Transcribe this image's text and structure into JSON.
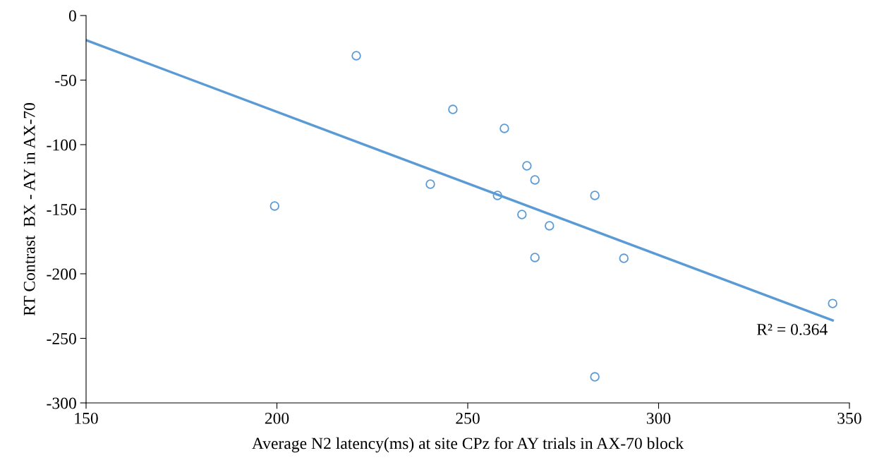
{
  "chart_data": {
    "type": "scatter",
    "xlabel": "Average N2 latency(ms) at site CPz for AY trials in AX-70 block",
    "ylabel": "RT Contrast  BX - AY in AX-70",
    "xlim": [
      150,
      350
    ],
    "xticks": [
      150,
      200,
      250,
      300,
      350
    ],
    "ylim": [
      -300,
      0
    ],
    "yticks": [
      -300,
      -250,
      -200,
      -150,
      -100,
      -50,
      0
    ],
    "grid": false,
    "legend": false,
    "series": [
      {
        "marker": "circle",
        "color": "#5b9bd5",
        "x": [
          199.4,
          220.8,
          240.2,
          246.1,
          257.8,
          259.6,
          264.2,
          265.5,
          267.6,
          267.6,
          271.4,
          283.3,
          283.3,
          290.9,
          345.6
        ],
        "values": [
          -147.5,
          -31.1,
          -130.6,
          -72.7,
          -139.3,
          -87.4,
          -154.1,
          -116.4,
          -127.3,
          -187.4,
          -162.8,
          -139.3,
          -279.8,
          -188.0,
          -223.0
        ]
      },
      {
        "type": "line",
        "marker": "none",
        "line_style": "solid",
        "color": "#5b9bd5",
        "x": [
          150,
          345.6
        ],
        "values": [
          -19.1,
          -236.1
        ]
      }
    ],
    "annotations": [
      {
        "text": "R² = 0.364",
        "x": 345.6,
        "y": -236.1
      }
    ]
  }
}
